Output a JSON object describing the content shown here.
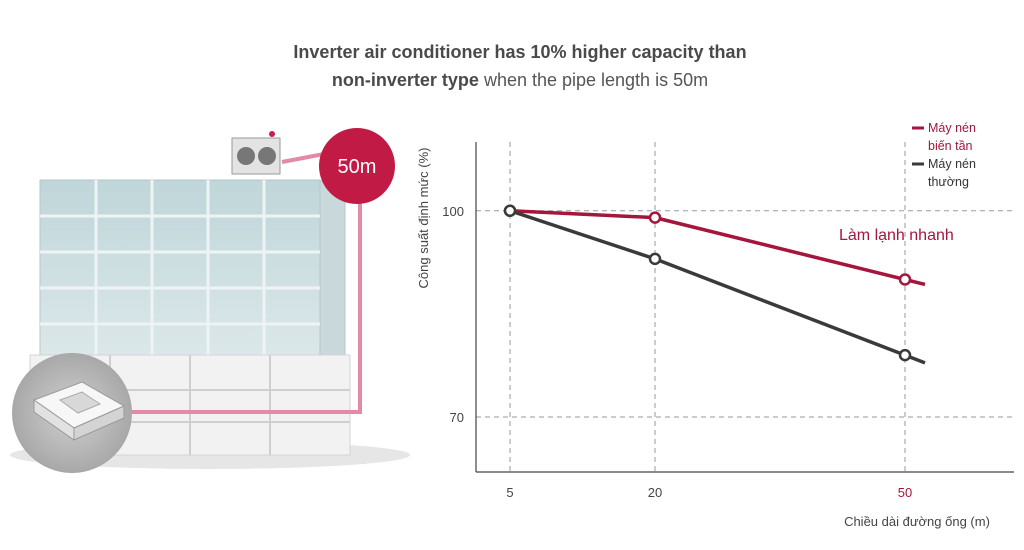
{
  "headline": {
    "line1": "Inverter air conditioner has 10% higher capacity than",
    "line2_bold": "non-inverter type",
    "line2_rest": " when the pipe length is 50m"
  },
  "illustration": {
    "badge_label": "50m",
    "pipe_color": "#c8204a"
  },
  "chart_data": {
    "type": "line",
    "x": [
      5,
      20,
      50
    ],
    "x_tick_labels": [
      "5",
      "20",
      "50"
    ],
    "y_tick_labels": [
      "100",
      "70"
    ],
    "xlabel": "Chiều dài đường ống (m)",
    "ylabel": "Công suất định mức (%)",
    "ylim": [
      62,
      110
    ],
    "grid": "dashed at x ticks and y ticks",
    "legend_position": "top-right",
    "series": [
      {
        "name": "Máy nén biến tần",
        "name_lines": [
          "Máy nén",
          "biến tần"
        ],
        "color": "#a5163d",
        "values": [
          100,
          99,
          90
        ]
      },
      {
        "name": "Máy nén thường",
        "name_lines": [
          "Máy nén",
          "thường"
        ],
        "color": "#3a3a3a",
        "values": [
          100,
          93,
          79
        ]
      }
    ],
    "annotations": [
      {
        "text": "Làm lạnh nhanh",
        "color": "#a5163d"
      }
    ]
  }
}
